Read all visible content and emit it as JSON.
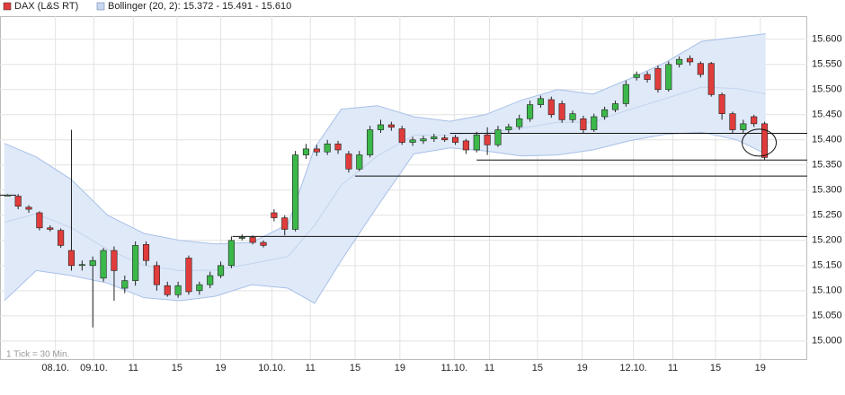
{
  "chart_data": {
    "type": "candlestick",
    "series": [
      {
        "name": "DAX (L&S RT)",
        "color": "#e03c3c",
        "up_color": "#3cb84a",
        "down_color": "#e03c3c",
        "open": [
          15290,
          15288,
          15266,
          15255,
          15225,
          15220,
          15180,
          15150,
          15150,
          15125,
          15180,
          15105,
          15120,
          15192,
          15150,
          15110,
          15092,
          15165,
          15100,
          15112,
          15130,
          15150,
          15204,
          15206,
          15196,
          15255,
          15245,
          15222,
          15370,
          15382,
          15376,
          15392,
          15372,
          15342,
          15370,
          15420,
          15430,
          15422,
          15395,
          15398,
          15402,
          15404,
          15405,
          15398,
          15380,
          15410,
          15390,
          15420,
          15426,
          15442,
          15470,
          15480,
          15472,
          15440,
          15442,
          15420,
          15446,
          15460,
          15472,
          15524,
          15530,
          15542,
          15500,
          15550,
          15562,
          15552,
          15552,
          15490,
          15452,
          15420,
          15446,
          15432
        ],
        "high": [
          15292,
          15292,
          15270,
          15258,
          15230,
          15224,
          15420,
          15160,
          15168,
          15185,
          15188,
          15130,
          15198,
          15198,
          15158,
          15118,
          15118,
          15170,
          15118,
          15138,
          15158,
          15208,
          15212,
          15210,
          15200,
          15262,
          15250,
          15378,
          15392,
          15390,
          15400,
          15398,
          15378,
          15378,
          15428,
          15440,
          15436,
          15428,
          15406,
          15408,
          15412,
          15410,
          15410,
          15402,
          15416,
          15425,
          15428,
          15432,
          15450,
          15478,
          15488,
          15486,
          15478,
          15458,
          15448,
          15452,
          15466,
          15478,
          15518,
          15536,
          15536,
          15548,
          15556,
          15566,
          15568,
          15556,
          15555,
          15494,
          15456,
          15440,
          15450,
          15436
        ],
        "low": [
          15288,
          15262,
          15255,
          15220,
          15218,
          15185,
          15140,
          15140,
          15027,
          15118,
          15080,
          15095,
          15110,
          15150,
          15100,
          15088,
          15086,
          15092,
          15092,
          15105,
          15125,
          15145,
          15200,
          15192,
          15186,
          15238,
          15210,
          15218,
          15362,
          15368,
          15370,
          15372,
          15335,
          15338,
          15365,
          15414,
          15418,
          15390,
          15388,
          15392,
          15396,
          15396,
          15390,
          15372,
          15375,
          15370,
          15386,
          15414,
          15420,
          15436,
          15464,
          15444,
          15434,
          15434,
          15414,
          15416,
          15440,
          15455,
          15466,
          15518,
          15514,
          15494,
          15496,
          15544,
          15548,
          15524,
          15486,
          15440,
          15414,
          15414,
          15426,
          15360
        ],
        "close": [
          15290,
          15268,
          15262,
          15225,
          15222,
          15190,
          15150,
          15152,
          15160,
          15180,
          15140,
          15120,
          15190,
          15160,
          15112,
          15092,
          15110,
          15098,
          15112,
          15130,
          15150,
          15200,
          15206,
          15196,
          15190,
          15245,
          15222,
          15370,
          15382,
          15376,
          15392,
          15380,
          15342,
          15370,
          15420,
          15430,
          15425,
          15395,
          15400,
          15402,
          15406,
          15400,
          15395,
          15380,
          15410,
          15390,
          15420,
          15426,
          15442,
          15470,
          15482,
          15450,
          15440,
          15452,
          15420,
          15446,
          15460,
          15472,
          15510,
          15530,
          15520,
          15500,
          15550,
          15560,
          15555,
          15530,
          15490,
          15452,
          15420,
          15432,
          15432,
          15365
        ]
      }
    ],
    "bands": {
      "name": "Bollinger (20, 2): 15.372 - 15.491 - 15.610",
      "color": "#a8c0e8",
      "fill": "#dfe9f8",
      "x": [
        -0.3,
        2.7,
        6.0,
        9.4,
        12.8,
        16.2,
        19.5,
        22.9,
        26.3,
        28.8,
        31.3,
        34.7,
        38.1,
        41.5,
        44.8,
        48.2,
        51.6,
        54.9,
        58.3,
        61.7,
        65.1,
        68.4,
        71.1
      ],
      "upper": [
        15393,
        15366,
        15321,
        15250,
        15214,
        15200,
        15193,
        15196,
        15232,
        15384,
        15461,
        15468,
        15446,
        15437,
        15450,
        15479,
        15500,
        15491,
        15521,
        15554,
        15596,
        15604,
        15611
      ],
      "middle": [
        15236,
        15253,
        15225,
        15182,
        15150,
        15140,
        15141,
        15154,
        15168,
        15230,
        15310,
        15368,
        15409,
        15410,
        15414,
        15423,
        15435,
        15435,
        15460,
        15482,
        15505,
        15502,
        15491
      ],
      "lower": [
        15080,
        15140,
        15130,
        15115,
        15086,
        15080,
        15089,
        15112,
        15105,
        15075,
        15160,
        15268,
        15372,
        15384,
        15378,
        15368,
        15370,
        15380,
        15398,
        15411,
        15415,
        15400,
        15372
      ]
    },
    "levels": [
      {
        "value": 15290,
        "from": -0.7,
        "to": 0.8
      },
      {
        "value": 15208,
        "from": 21.1,
        "to": 75
      },
      {
        "value": 15328,
        "from": 32.6,
        "to": 75
      },
      {
        "value": 15360,
        "from": 44,
        "to": 75
      },
      {
        "value": 15413,
        "from": 41.5,
        "to": 75
      }
    ],
    "note": "1 Tick = 30 Min.",
    "xlim": [
      -0.7,
      75
    ],
    "ylim": [
      14964,
      15646
    ],
    "xticks": [
      {
        "value": 4.5,
        "label": "08.10."
      },
      {
        "value": 8.1,
        "label": "09.10."
      },
      {
        "value": 11.8,
        "label": "11"
      },
      {
        "value": 15.9,
        "label": "15"
      },
      {
        "value": 20,
        "label": "19"
      },
      {
        "value": 24.8,
        "label": "10.10."
      },
      {
        "value": 28.4,
        "label": "11"
      },
      {
        "value": 32.6,
        "label": "15"
      },
      {
        "value": 36.8,
        "label": "19"
      },
      {
        "value": 41.9,
        "label": "11.10."
      },
      {
        "value": 45.2,
        "label": "11"
      },
      {
        "value": 49.7,
        "label": "15"
      },
      {
        "value": 53.9,
        "label": "19"
      },
      {
        "value": 58.7,
        "label": "12.10."
      },
      {
        "value": 62.4,
        "label": "11"
      },
      {
        "value": 66.4,
        "label": "15"
      },
      {
        "value": 70.6,
        "label": "19"
      }
    ],
    "yticks": [
      {
        "value": 15000,
        "label": "15.000"
      },
      {
        "value": 15050,
        "label": "15.050"
      },
      {
        "value": 15100,
        "label": "15.100"
      },
      {
        "value": 15150,
        "label": "15.150"
      },
      {
        "value": 15200,
        "label": "15.200"
      },
      {
        "value": 15250,
        "label": "15.250"
      },
      {
        "value": 15300,
        "label": "15.300"
      },
      {
        "value": 15350,
        "label": "15.350"
      },
      {
        "value": 15400,
        "label": "15.400"
      },
      {
        "value": 15450,
        "label": "15.450"
      },
      {
        "value": 15500,
        "label": "15.500"
      },
      {
        "value": 15550,
        "label": "15.550"
      },
      {
        "value": 15600,
        "label": "15.600"
      }
    ],
    "grid": true
  }
}
